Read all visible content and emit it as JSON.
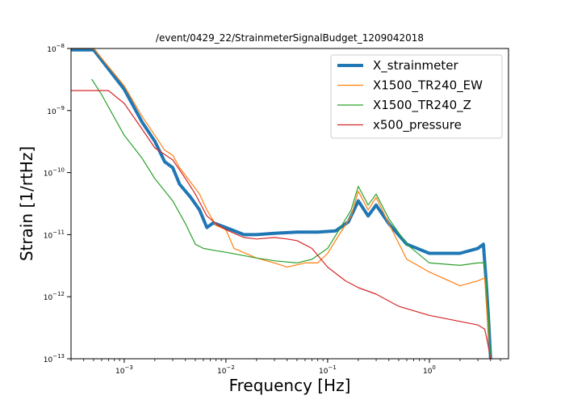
{
  "chart_data": {
    "type": "line",
    "title": "/event/0429_22/StrainmeterSignalBudget_1209042018",
    "xlabel": "Frequency [Hz]",
    "ylabel": "Strain [1/rtHz]",
    "xscale": "log",
    "yscale": "log",
    "xlim": [
      0.0003,
      6.0
    ],
    "ylim": [
      1e-13,
      1e-08
    ],
    "x_ticks": [
      {
        "value": 0.001,
        "base": "10",
        "exp": "−3"
      },
      {
        "value": 0.01,
        "base": "10",
        "exp": "−2"
      },
      {
        "value": 0.1,
        "base": "10",
        "exp": "−1"
      },
      {
        "value": 1.0,
        "base": "10",
        "exp": "0"
      }
    ],
    "y_ticks": [
      {
        "value": 1e-13,
        "base": "10",
        "exp": "−13"
      },
      {
        "value": 1e-12,
        "base": "10",
        "exp": "−12"
      },
      {
        "value": 1e-11,
        "base": "10",
        "exp": "−11"
      },
      {
        "value": 1e-10,
        "base": "10",
        "exp": "−10"
      },
      {
        "value": 1e-09,
        "base": "10",
        "exp": "−9"
      },
      {
        "value": 1e-08,
        "base": "10",
        "exp": "−8"
      }
    ],
    "legend_position": "top-right",
    "series": [
      {
        "name": "X_strainmeter",
        "color": "#1f77b4",
        "width": 4,
        "points": [
          [
            0.0003,
            9.5e-09
          ],
          [
            0.0005,
            9.5e-09
          ],
          [
            0.001,
            2.2e-09
          ],
          [
            0.0015,
            6.5e-10
          ],
          [
            0.002,
            3.2e-10
          ],
          [
            0.0025,
            1.5e-10
          ],
          [
            0.003,
            1.2e-10
          ],
          [
            0.0035,
            6.5e-11
          ],
          [
            0.0045,
            4e-11
          ],
          [
            0.0055,
            2.5e-11
          ],
          [
            0.0065,
            1.3e-11
          ],
          [
            0.0075,
            1.55e-11
          ],
          [
            0.01,
            1.3e-11
          ],
          [
            0.015,
            1e-11
          ],
          [
            0.02,
            1e-11
          ],
          [
            0.03,
            1.05e-11
          ],
          [
            0.05,
            1.1e-11
          ],
          [
            0.08,
            1.1e-11
          ],
          [
            0.12,
            1.15e-11
          ],
          [
            0.16,
            1.6e-11
          ],
          [
            0.2,
            3.5e-11
          ],
          [
            0.25,
            2e-11
          ],
          [
            0.3,
            3e-11
          ],
          [
            0.4,
            1.5e-11
          ],
          [
            0.6,
            7e-12
          ],
          [
            1.0,
            5e-12
          ],
          [
            2.0,
            5e-12
          ],
          [
            3.0,
            6e-12
          ],
          [
            3.4,
            7e-12
          ],
          [
            3.6,
            2e-12
          ],
          [
            3.8,
            5e-13
          ],
          [
            4.0,
            1e-13
          ]
        ]
      },
      {
        "name": "X1500_TR240_EW",
        "color": "#ff7f0e",
        "width": 1.2,
        "points": [
          [
            0.0003,
            1e-08
          ],
          [
            0.0005,
            1e-08
          ],
          [
            0.001,
            2.5e-09
          ],
          [
            0.0015,
            8e-10
          ],
          [
            0.002,
            4e-10
          ],
          [
            0.0025,
            2.3e-10
          ],
          [
            0.003,
            1.9e-10
          ],
          [
            0.0035,
            1.2e-10
          ],
          [
            0.0045,
            7e-11
          ],
          [
            0.0055,
            4.5e-11
          ],
          [
            0.0065,
            2.5e-11
          ],
          [
            0.008,
            1.4e-11
          ],
          [
            0.01,
            1.2e-11
          ],
          [
            0.012,
            6e-12
          ],
          [
            0.02,
            4.2e-12
          ],
          [
            0.03,
            3.5e-12
          ],
          [
            0.04,
            3e-12
          ],
          [
            0.06,
            3.5e-12
          ],
          [
            0.08,
            3.5e-12
          ],
          [
            0.1,
            5e-12
          ],
          [
            0.13,
            1e-11
          ],
          [
            0.17,
            2e-11
          ],
          [
            0.2,
            5e-11
          ],
          [
            0.25,
            2.5e-11
          ],
          [
            0.3,
            4e-11
          ],
          [
            0.4,
            1.5e-11
          ],
          [
            0.6,
            4e-12
          ],
          [
            1.0,
            2.5e-12
          ],
          [
            2.0,
            1.5e-12
          ],
          [
            3.0,
            1.8e-12
          ],
          [
            3.5,
            2e-12
          ],
          [
            3.7,
            5e-13
          ],
          [
            4.0,
            1e-13
          ]
        ]
      },
      {
        "name": "X1500_TR240_Z",
        "color": "#2ca02c",
        "width": 1.2,
        "points": [
          [
            0.00048,
            3.2e-09
          ],
          [
            0.0006,
            1.8e-09
          ],
          [
            0.001,
            4e-10
          ],
          [
            0.0015,
            1.7e-10
          ],
          [
            0.002,
            8e-11
          ],
          [
            0.003,
            3.5e-11
          ],
          [
            0.004,
            1.5e-11
          ],
          [
            0.005,
            7e-12
          ],
          [
            0.006,
            6e-12
          ],
          [
            0.008,
            5.5e-12
          ],
          [
            0.01,
            5.2e-12
          ],
          [
            0.02,
            4.2e-12
          ],
          [
            0.03,
            3.8e-12
          ],
          [
            0.05,
            3.5e-12
          ],
          [
            0.07,
            4e-12
          ],
          [
            0.1,
            6e-12
          ],
          [
            0.13,
            1.2e-11
          ],
          [
            0.17,
            2.5e-11
          ],
          [
            0.2,
            6e-11
          ],
          [
            0.25,
            3e-11
          ],
          [
            0.3,
            4.5e-11
          ],
          [
            0.4,
            1.8e-11
          ],
          [
            0.6,
            7e-12
          ],
          [
            1.0,
            3.5e-12
          ],
          [
            2.0,
            3.2e-12
          ],
          [
            3.0,
            3.5e-12
          ],
          [
            3.5,
            3.5e-12
          ],
          [
            3.7,
            1e-12
          ],
          [
            4.0,
            1e-13
          ]
        ]
      },
      {
        "name": "x500_pressure",
        "color": "#d62728",
        "width": 1.2,
        "points": [
          [
            0.0003,
            2.1e-09
          ],
          [
            0.0007,
            2.1e-09
          ],
          [
            0.001,
            1.3e-09
          ],
          [
            0.0015,
            5e-10
          ],
          [
            0.002,
            2.5e-10
          ],
          [
            0.003,
            1.6e-10
          ],
          [
            0.004,
            8e-11
          ],
          [
            0.005,
            4.5e-11
          ],
          [
            0.0065,
            2e-11
          ],
          [
            0.008,
            1.5e-11
          ],
          [
            0.01,
            1.2e-11
          ],
          [
            0.015,
            9e-12
          ],
          [
            0.02,
            8.5e-12
          ],
          [
            0.03,
            9e-12
          ],
          [
            0.04,
            8.5e-12
          ],
          [
            0.05,
            8e-12
          ],
          [
            0.07,
            6e-12
          ],
          [
            0.1,
            3e-12
          ],
          [
            0.15,
            1.8e-12
          ],
          [
            0.2,
            1.4e-12
          ],
          [
            0.3,
            1.1e-12
          ],
          [
            0.5,
            7e-13
          ],
          [
            1.0,
            5e-13
          ],
          [
            2.0,
            4e-13
          ],
          [
            3.0,
            3.5e-13
          ],
          [
            3.5,
            3e-13
          ],
          [
            3.7,
            2e-13
          ],
          [
            4.0,
            1e-13
          ]
        ]
      }
    ]
  }
}
